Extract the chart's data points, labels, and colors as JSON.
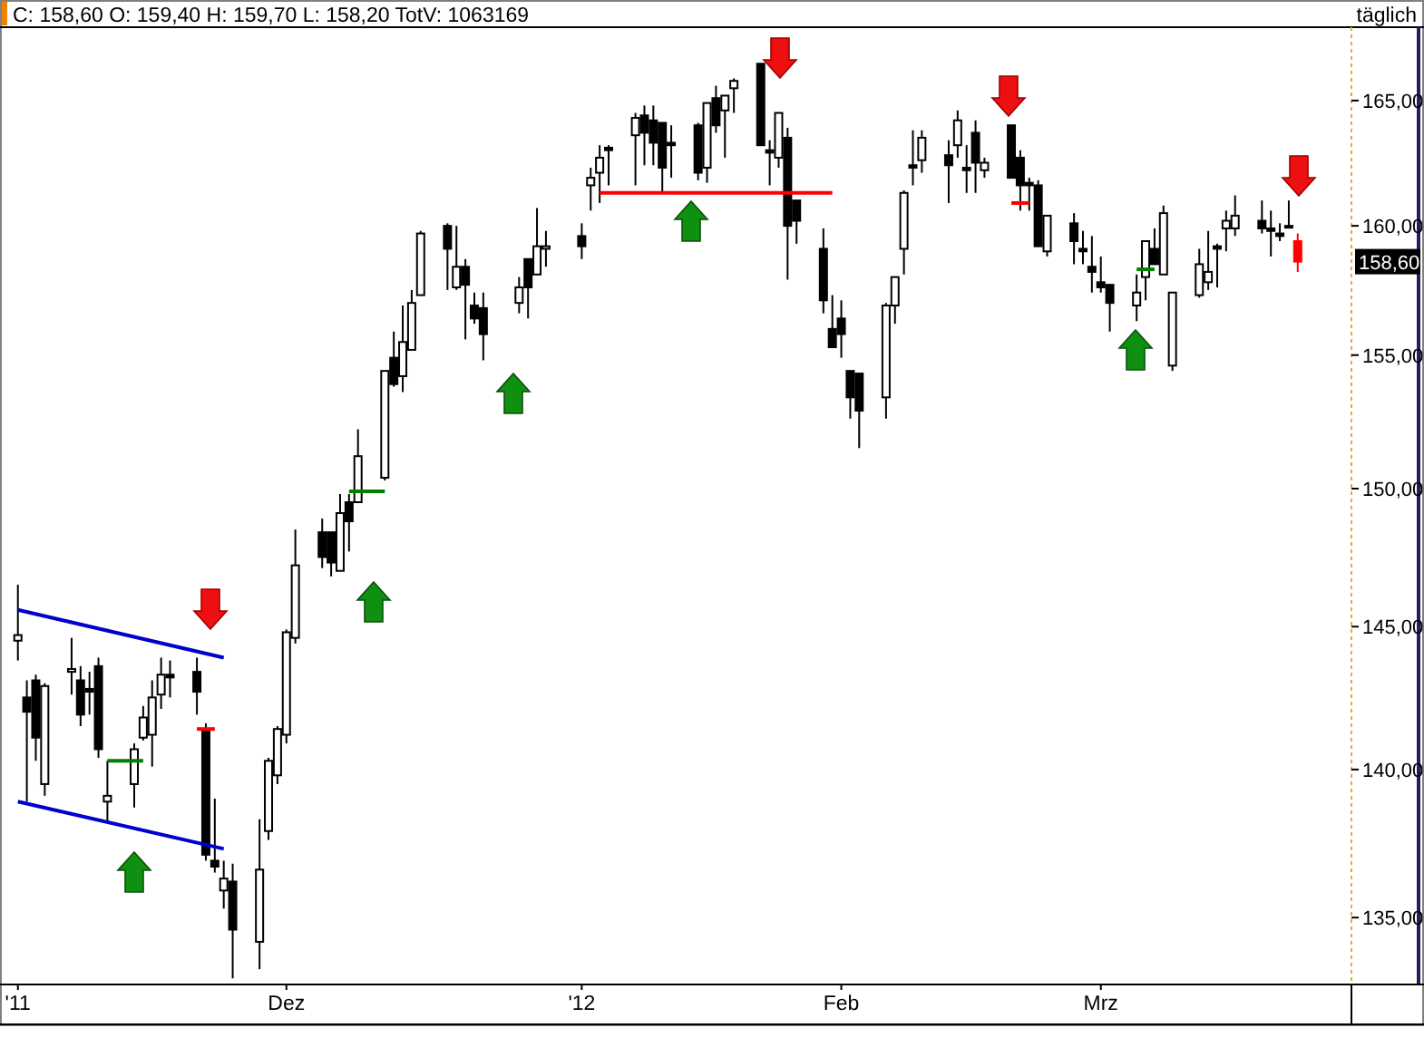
{
  "chart_data": {
    "type": "candlestick",
    "title": "C: 158,60 O: 159,40 H: 159,70 L: 158,20 TotV: 1063169",
    "x": [
      "2011-11-01",
      "2011-11-02",
      "2011-11-03",
      "2011-11-04",
      "2011-11-07",
      "2011-11-08",
      "2011-11-09",
      "2011-11-10",
      "2011-11-11",
      "2011-11-14",
      "2011-11-15",
      "2011-11-16",
      "2011-11-17",
      "2011-11-18",
      "2011-11-21",
      "2011-11-22",
      "2011-11-23",
      "2011-11-24",
      "2011-11-25",
      "2011-11-28",
      "2011-11-29",
      "2011-11-30",
      "2011-12-01",
      "2011-12-02",
      "2011-12-05",
      "2011-12-06",
      "2011-12-07",
      "2011-12-08",
      "2011-12-09",
      "2011-12-12",
      "2011-12-13",
      "2011-12-14",
      "2011-12-15",
      "2011-12-16",
      "2011-12-19",
      "2011-12-20",
      "2011-12-21",
      "2011-12-22",
      "2011-12-23",
      "2011-12-27",
      "2011-12-28",
      "2011-12-29",
      "2011-12-30",
      "2012-01-03",
      "2012-01-04",
      "2012-01-05",
      "2012-01-06",
      "2012-01-09",
      "2012-01-10",
      "2012-01-11",
      "2012-01-12",
      "2012-01-13",
      "2012-01-16",
      "2012-01-17",
      "2012-01-18",
      "2012-01-19",
      "2012-01-20",
      "2012-01-23",
      "2012-01-24",
      "2012-01-25",
      "2012-01-26",
      "2012-01-27",
      "2012-01-30",
      "2012-01-31",
      "2012-02-01",
      "2012-02-02",
      "2012-02-03",
      "2012-02-06",
      "2012-02-07",
      "2012-02-08",
      "2012-02-09",
      "2012-02-10",
      "2012-02-13",
      "2012-02-14",
      "2012-02-15",
      "2012-02-16",
      "2012-02-17",
      "2012-02-20",
      "2012-02-21",
      "2012-02-22",
      "2012-02-23",
      "2012-02-24",
      "2012-02-27",
      "2012-02-28",
      "2012-02-29",
      "2012-03-01",
      "2012-03-02",
      "2012-03-05",
      "2012-03-06",
      "2012-03-07",
      "2012-03-08",
      "2012-03-09",
      "2012-03-12",
      "2012-03-13",
      "2012-03-14",
      "2012-03-15",
      "2012-03-16",
      "2012-03-19",
      "2012-03-20",
      "2012-03-21",
      "2012-03-22",
      "2012-03-23"
    ],
    "ohlc": [
      [
        144.5,
        146.5,
        143.8,
        144.7
      ],
      [
        142.5,
        143.1,
        138.9,
        142.0
      ],
      [
        143.1,
        143.3,
        140.3,
        141.1
      ],
      [
        139.5,
        143.0,
        139.1,
        142.9
      ],
      [
        143.4,
        144.6,
        142.6,
        143.5
      ],
      [
        143.1,
        143.6,
        141.5,
        141.9
      ],
      [
        142.8,
        143.4,
        141.9,
        142.7
      ],
      [
        143.6,
        143.9,
        140.4,
        140.7
      ],
      [
        138.9,
        140.3,
        138.2,
        139.1
      ],
      [
        139.5,
        140.9,
        138.7,
        140.7
      ],
      [
        141.1,
        142.2,
        141.0,
        141.8
      ],
      [
        141.2,
        143.1,
        140.1,
        142.5
      ],
      [
        142.6,
        143.9,
        142.1,
        143.3
      ],
      [
        143.3,
        143.8,
        142.5,
        143.2
      ],
      [
        143.4,
        143.9,
        141.9,
        142.7
      ],
      [
        141.4,
        141.6,
        136.9,
        137.1
      ],
      [
        136.9,
        139.0,
        136.5,
        136.7
      ],
      [
        135.9,
        136.9,
        135.3,
        136.3
      ],
      [
        136.2,
        136.8,
        133.0,
        134.6
      ],
      [
        134.2,
        138.3,
        133.3,
        136.6
      ],
      [
        137.9,
        140.4,
        137.6,
        140.3
      ],
      [
        139.8,
        141.5,
        139.5,
        141.4
      ],
      [
        141.2,
        144.9,
        140.9,
        144.8
      ],
      [
        144.6,
        148.5,
        144.4,
        147.2
      ],
      [
        148.4,
        148.9,
        147.1,
        147.5
      ],
      [
        148.4,
        148.4,
        146.8,
        147.3
      ],
      [
        147.0,
        149.8,
        147.0,
        149.1
      ],
      [
        149.5,
        149.8,
        147.7,
        148.8
      ],
      [
        149.5,
        152.2,
        149.5,
        151.2
      ],
      [
        150.4,
        154.4,
        150.3,
        154.4
      ],
      [
        154.9,
        155.9,
        153.8,
        153.9
      ],
      [
        154.2,
        156.9,
        153.6,
        155.5
      ],
      [
        155.2,
        157.5,
        155.2,
        157.0
      ],
      [
        157.3,
        159.8,
        157.3,
        159.7
      ],
      [
        160.0,
        160.1,
        157.5,
        159.1
      ],
      [
        157.6,
        160.0,
        157.5,
        158.4
      ],
      [
        158.4,
        158.7,
        155.6,
        157.7
      ],
      [
        156.9,
        157.4,
        156.2,
        156.4
      ],
      [
        156.8,
        157.4,
        154.8,
        155.8
      ],
      [
        157.0,
        158.0,
        156.6,
        157.6
      ],
      [
        158.7,
        158.7,
        156.4,
        157.6
      ],
      [
        158.1,
        160.7,
        158.1,
        159.2
      ],
      [
        159.1,
        159.8,
        158.4,
        159.2
      ],
      [
        159.6,
        160.1,
        158.7,
        159.2
      ],
      [
        161.6,
        162.3,
        160.6,
        161.9
      ],
      [
        162.1,
        163.2,
        160.9,
        162.7
      ],
      [
        163.1,
        163.2,
        161.6,
        163.0
      ],
      [
        163.6,
        164.5,
        161.6,
        164.3
      ],
      [
        164.4,
        164.8,
        162.4,
        163.7
      ],
      [
        164.2,
        164.8,
        162.4,
        163.3
      ],
      [
        164.1,
        164.1,
        161.3,
        162.3
      ],
      [
        163.3,
        164.0,
        161.9,
        163.2
      ],
      [
        164.0,
        164.1,
        161.8,
        162.1
      ],
      [
        162.3,
        164.9,
        161.7,
        164.9
      ],
      [
        165.1,
        165.6,
        163.7,
        164.0
      ],
      [
        164.6,
        165.2,
        162.7,
        165.2
      ],
      [
        165.5,
        165.9,
        164.5,
        165.8
      ],
      [
        166.5,
        166.5,
        163.2,
        163.2
      ],
      [
        163.0,
        163.4,
        161.6,
        162.9
      ],
      [
        162.7,
        164.5,
        162.3,
        164.5
      ],
      [
        163.5,
        163.9,
        157.9,
        160.0
      ],
      [
        161.0,
        161.0,
        159.3,
        160.2
      ],
      [
        159.1,
        159.9,
        156.6,
        157.1
      ],
      [
        156.0,
        157.3,
        155.3,
        155.3
      ],
      [
        156.4,
        157.1,
        154.9,
        155.8
      ],
      [
        154.4,
        154.4,
        152.6,
        153.4
      ],
      [
        154.3,
        154.3,
        151.5,
        152.9
      ],
      [
        153.4,
        157.0,
        152.6,
        156.9
      ],
      [
        156.9,
        158.0,
        156.2,
        158.0
      ],
      [
        159.1,
        161.4,
        158.1,
        161.3
      ],
      [
        162.4,
        163.8,
        161.6,
        162.3
      ],
      [
        162.6,
        163.8,
        162.1,
        163.5
      ],
      [
        162.8,
        163.4,
        160.9,
        162.4
      ],
      [
        163.2,
        164.6,
        162.7,
        164.2
      ],
      [
        162.3,
        163.2,
        161.3,
        162.2
      ],
      [
        163.7,
        164.2,
        161.3,
        162.5
      ],
      [
        162.2,
        162.7,
        161.9,
        162.5
      ],
      [
        164.0,
        164.0,
        161.9,
        161.9
      ],
      [
        162.7,
        163.0,
        160.6,
        161.6
      ],
      [
        161.7,
        161.9,
        160.6,
        161.6
      ],
      [
        161.6,
        161.8,
        159.2,
        159.2
      ],
      [
        159.0,
        160.4,
        158.8,
        160.4
      ],
      [
        160.1,
        160.5,
        158.5,
        159.4
      ],
      [
        159.1,
        159.8,
        158.5,
        159.0
      ],
      [
        158.4,
        159.6,
        157.4,
        158.2
      ],
      [
        157.8,
        158.8,
        157.4,
        157.6
      ],
      [
        157.7,
        157.7,
        155.9,
        157.0
      ],
      [
        156.9,
        158.1,
        156.3,
        157.4
      ],
      [
        158.0,
        159.4,
        157.1,
        159.4
      ],
      [
        159.1,
        159.9,
        158.5,
        158.5
      ],
      [
        158.1,
        160.8,
        158.1,
        160.5
      ],
      [
        154.6,
        157.4,
        154.4,
        157.4
      ],
      [
        157.3,
        159.1,
        157.2,
        158.5
      ],
      [
        157.8,
        159.8,
        157.5,
        158.2
      ],
      [
        159.2,
        159.3,
        157.6,
        159.1
      ],
      [
        159.9,
        160.6,
        159.0,
        160.2
      ],
      [
        159.9,
        161.2,
        159.6,
        160.4
      ],
      [
        160.2,
        161.0,
        159.7,
        159.9
      ],
      [
        159.9,
        160.6,
        158.8,
        159.8
      ],
      [
        159.7,
        160.1,
        159.4,
        159.6
      ],
      [
        160.0,
        161.0,
        159.9,
        160.0
      ],
      [
        159.4,
        159.7,
        158.2,
        158.6
      ]
    ],
    "colors": [
      "#000000",
      "#000000",
      "#000000",
      "#000000",
      "#000000",
      "#000000",
      "#000000",
      "#000000",
      "#000000",
      "#000000",
      "#000000",
      "#000000",
      "#000000",
      "#000000",
      "#000000",
      "#000000",
      "#000000",
      "#000000",
      "#000000",
      "#000000",
      "#000000",
      "#000000",
      "#000000",
      "#000000",
      "#000000",
      "#000000",
      "#000000",
      "#000000",
      "#000000",
      "#000000",
      "#000000",
      "#000000",
      "#000000",
      "#000000",
      "#000000",
      "#000000",
      "#000000",
      "#000000",
      "#000000",
      "#000000",
      "#000000",
      "#000000",
      "#000000",
      "#000000",
      "#000000",
      "#000000",
      "#000000",
      "#000000",
      "#000000",
      "#000000",
      "#000000",
      "#000000",
      "#000000",
      "#000000",
      "#000000",
      "#000000",
      "#000000",
      "#000000",
      "#000000",
      "#000000",
      "#000000",
      "#000000",
      "#000000",
      "#000000",
      "#000000",
      "#000000",
      "#000000",
      "#000000",
      "#000000",
      "#000000",
      "#000000",
      "#000000",
      "#000000",
      "#000000",
      "#000000",
      "#000000",
      "#000000",
      "#000000",
      "#000000",
      "#000000",
      "#000000",
      "#000000",
      "#000000",
      "#000000",
      "#000000",
      "#000000",
      "#000000",
      "#000000",
      "#000000",
      "#000000",
      "#000000",
      "#000000",
      "#000000",
      "#000000",
      "#000000",
      "#000000",
      "#000000",
      "#000000",
      "#000000",
      "#000000",
      "#000000",
      "#ff0000"
    ],
    "series": [
      {
        "type": "line",
        "color": "#0000cc",
        "x": [
          "2011-11-01",
          "2011-11-24"
        ],
        "values": [
          145.6,
          143.9
        ]
      },
      {
        "type": "line",
        "color": "#0000cc",
        "x": [
          "2011-11-01",
          "2011-11-24"
        ],
        "values": [
          138.9,
          137.3
        ]
      },
      {
        "type": "line",
        "color": "#ff0000",
        "x": [
          "2012-01-05",
          "2012-01-31"
        ],
        "values": [
          161.3,
          161.3
        ]
      },
      {
        "type": "line",
        "color": "#008000",
        "x": [
          "2011-11-11",
          "2011-11-15"
        ],
        "values": [
          140.3,
          140.3
        ]
      },
      {
        "type": "line",
        "color": "#ff0000",
        "x": [
          "2011-11-21",
          "2011-11-23"
        ],
        "values": [
          141.4,
          141.4
        ]
      },
      {
        "type": "line",
        "color": "#008000",
        "x": [
          "2011-12-08",
          "2011-12-12"
        ],
        "values": [
          149.9,
          149.9
        ]
      },
      {
        "type": "line",
        "color": "#ff0000",
        "x": [
          "2012-02-20",
          "2012-02-22"
        ],
        "values": [
          160.9,
          160.9
        ]
      },
      {
        "type": "line",
        "color": "#008000",
        "x": [
          "2012-03-05",
          "2012-03-07"
        ],
        "values": [
          158.3,
          158.3
        ]
      }
    ],
    "ylim": [
      132.8,
      168
    ],
    "yticks": [
      {
        "value": 135,
        "label": "135,00"
      },
      {
        "value": 140,
        "label": "140,00"
      },
      {
        "value": 145,
        "label": "145,00"
      },
      {
        "value": 150,
        "label": "150,00"
      },
      {
        "value": 155,
        "label": "155,00"
      },
      {
        "value": 160,
        "label": "160,00"
      },
      {
        "value": 165,
        "label": "165,00"
      }
    ],
    "xticks": [
      {
        "value": "2011-11-01",
        "label": "'11"
      },
      {
        "value": "2011-12-01",
        "label": "Dez"
      },
      {
        "value": "2012-01-03",
        "label": "'12"
      },
      {
        "value": "2012-02-01",
        "label": "Feb"
      },
      {
        "value": "2012-03-01",
        "label": "Mrz"
      }
    ],
    "xlim": [
      "2011-10-30",
      "2012-03-29"
    ],
    "log": true,
    "annotations": [
      "täglich",
      {
        "text": "158,60",
        "y": 158.6
      }
    ]
  }
}
